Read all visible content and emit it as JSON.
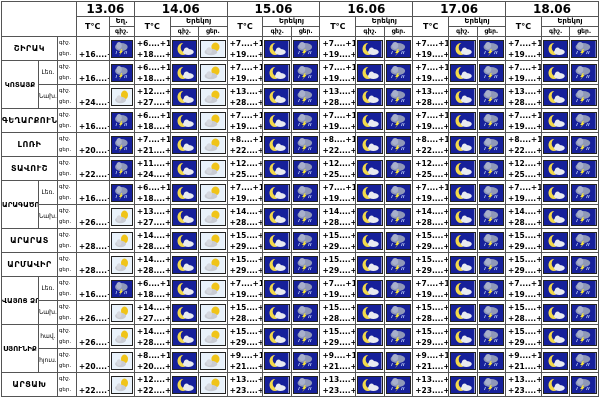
{
  "header": {
    "dates": [
      "13.06",
      "14.06",
      "15.06",
      "16.06",
      "17.06",
      "18.06"
    ],
    "tc_label": "T°C",
    "cond_label": "Եղ.",
    "cond_label_2": "Երեկոյ",
    "night_label": "գիշ.",
    "day_label": "ցեր."
  },
  "regions": [
    {
      "name": "ՇԻՐԱԿ",
      "rows": [
        {
          "labels": [
            "գիշ.",
            "ցեր."
          ],
          "d0": [
            "",
            "+16....+21"
          ],
          "d0_icon": "rain-cloud-icon",
          "temps": [
            [
              "+6....+11",
              "+18....+23"
            ],
            [
              "+7....+12",
              "+19....+24"
            ],
            [
              "+7....+12",
              "+19....+24"
            ],
            [
              "+7....+12",
              "+19....+24"
            ],
            [
              "+7....+12",
              "+19....+24"
            ]
          ],
          "icons": [
            [
              "moon-cloud-icon",
              "sun-cloud-icon"
            ],
            [
              "moon-cloud-icon",
              "rain-cloud-icon"
            ],
            [
              "moon-cloud-icon",
              "rain-cloud-icon"
            ],
            [
              "moon-cloud-icon",
              "rain-cloud-icon"
            ],
            [
              "moon-cloud-icon",
              "rain-cloud-icon"
            ]
          ]
        }
      ]
    },
    {
      "name": "ԿՈՏԱՅՔ",
      "rows": [
        {
          "sub": "Լեռ.",
          "labels": [
            "գիշ.",
            "ցեր."
          ],
          "d0": [
            "",
            "+16....+21"
          ],
          "d0_icon": "rain-cloud-icon",
          "temps": [
            [
              "+6....+11",
              "+18....+23"
            ],
            [
              "+7....+12",
              "+19....+24"
            ],
            [
              "+7....+12",
              "+19....+24"
            ],
            [
              "+7....+12",
              "+19....+24"
            ],
            [
              "+7....+12",
              "+19....+24"
            ]
          ],
          "icons": [
            [
              "moon-cloud-icon",
              "sun-cloud-icon"
            ],
            [
              "moon-cloud-icon",
              "rain-cloud-icon"
            ],
            [
              "moon-cloud-icon",
              "rain-cloud-icon"
            ],
            [
              "moon-cloud-icon",
              "rain-cloud-icon"
            ],
            [
              "moon-cloud-icon",
              "rain-cloud-icon"
            ]
          ]
        },
        {
          "sub": "Նախ.",
          "labels": [
            "գիշ.",
            "ցեր."
          ],
          "d0": [
            "",
            "+24....+27"
          ],
          "d0_icon": "sun-cloud-icon",
          "temps": [
            [
              "+12....+14",
              "+27....+29"
            ],
            [
              "+13....+15",
              "+28....+30"
            ],
            [
              "+13....+15",
              "+28....+30"
            ],
            [
              "+13....+15",
              "+28....+30"
            ],
            [
              "+13....+15",
              "+28....+30"
            ]
          ],
          "icons": [
            [
              "moon-cloud-icon",
              "sun-cloud-icon"
            ],
            [
              "moon-cloud-icon",
              "rain-cloud-icon"
            ],
            [
              "moon-cloud-icon",
              "rain-cloud-icon"
            ],
            [
              "moon-cloud-icon",
              "rain-cloud-icon"
            ],
            [
              "moon-cloud-icon",
              "rain-cloud-icon"
            ]
          ]
        }
      ]
    },
    {
      "name": "ԳԵՂԱՐՔՈՒՆԻՔ",
      "rows": [
        {
          "labels": [
            "գիշ.",
            "ցեր."
          ],
          "d0": [
            "",
            "+16....+21"
          ],
          "d0_icon": "rain-cloud-icon",
          "temps": [
            [
              "+6....+11",
              "+18....+23"
            ],
            [
              "+7....+12",
              "+19....+24"
            ],
            [
              "+7....+12",
              "+19....+24"
            ],
            [
              "+7....+12",
              "+19....+24"
            ],
            [
              "+7....+12",
              "+19....+24"
            ]
          ],
          "icons": [
            [
              "moon-cloud-icon",
              "sun-cloud-icon"
            ],
            [
              "moon-cloud-icon",
              "rain-cloud-icon"
            ],
            [
              "moon-cloud-icon",
              "rain-cloud-icon"
            ],
            [
              "moon-cloud-icon",
              "rain-cloud-icon"
            ],
            [
              "moon-cloud-icon",
              "rain-cloud-icon"
            ]
          ]
        }
      ]
    },
    {
      "name": "ԼՈՌԻ",
      "rows": [
        {
          "labels": [
            "գիշ.",
            "ցեր."
          ],
          "d0": [
            "",
            "+20....+23"
          ],
          "d0_icon": "rain-cloud-icon",
          "temps": [
            [
              "+7....+12",
              "+21....+24"
            ],
            [
              "+8....+13",
              "+22....+25"
            ],
            [
              "+8....+13",
              "+22....+25"
            ],
            [
              "+8....+13",
              "+22....+25"
            ],
            [
              "+8....+13",
              "+22....+25"
            ]
          ],
          "icons": [
            [
              "moon-cloud-icon",
              "sun-cloud-icon"
            ],
            [
              "moon-cloud-icon",
              "rain-cloud-icon"
            ],
            [
              "moon-cloud-icon",
              "rain-cloud-icon"
            ],
            [
              "moon-cloud-icon",
              "rain-cloud-icon"
            ],
            [
              "moon-cloud-icon",
              "rain-cloud-icon"
            ]
          ]
        }
      ]
    },
    {
      "name": "ՏԱՎՈՒՇ",
      "rows": [
        {
          "labels": [
            "գիշ.",
            "ցեր."
          ],
          "d0": [
            "",
            "+22....+27"
          ],
          "d0_icon": "rain-cloud-icon",
          "temps": [
            [
              "+11....+16",
              "+24....+28"
            ],
            [
              "+12....+17",
              "+25....+29"
            ],
            [
              "+12....+17",
              "+25....+29"
            ],
            [
              "+12....+17",
              "+25....+29"
            ],
            [
              "+12....+17",
              "+25....+29"
            ]
          ],
          "icons": [
            [
              "moon-cloud-icon",
              "sun-cloud-icon"
            ],
            [
              "moon-cloud-icon",
              "rain-cloud-icon"
            ],
            [
              "moon-cloud-icon",
              "rain-cloud-icon"
            ],
            [
              "moon-cloud-icon",
              "rain-cloud-icon"
            ],
            [
              "moon-cloud-icon",
              "rain-cloud-icon"
            ]
          ]
        }
      ]
    },
    {
      "name": "ԱՐԱԳԱԾՈՏՆ",
      "rows": [
        {
          "sub": "Լեռ.",
          "labels": [
            "գիշ.",
            "ցեր."
          ],
          "d0": [
            "",
            "+16....+21"
          ],
          "d0_icon": "rain-cloud-icon",
          "temps": [
            [
              "+6....+11",
              "+18....+23"
            ],
            [
              "+7....+12",
              "+19....+24"
            ],
            [
              "+7....+12",
              "+19....+24"
            ],
            [
              "+7....+12",
              "+19....+24"
            ],
            [
              "+7....+12",
              "+19....+24"
            ]
          ],
          "icons": [
            [
              "moon-cloud-icon",
              "sun-cloud-icon"
            ],
            [
              "moon-cloud-icon",
              "rain-cloud-icon"
            ],
            [
              "moon-cloud-icon",
              "rain-cloud-icon"
            ],
            [
              "moon-cloud-icon",
              "rain-cloud-icon"
            ],
            [
              "moon-cloud-icon",
              "rain-cloud-icon"
            ]
          ]
        },
        {
          "sub": "Նախ.",
          "labels": [
            "գիշ.",
            "ցեր."
          ],
          "d0": [
            "",
            "+26....+29"
          ],
          "d0_icon": "sun-cloud-icon",
          "temps": [
            [
              "+13....+15",
              "+27....+30"
            ],
            [
              "+14....+16",
              "+28....+31"
            ],
            [
              "+14....+16",
              "+28....+31"
            ],
            [
              "+14....+16",
              "+28....+31"
            ],
            [
              "+14....+16",
              "+28....+31"
            ]
          ],
          "icons": [
            [
              "moon-cloud-icon",
              "sun-cloud-icon"
            ],
            [
              "moon-cloud-icon",
              "rain-cloud-icon"
            ],
            [
              "moon-cloud-icon",
              "rain-cloud-icon"
            ],
            [
              "moon-cloud-icon",
              "rain-cloud-icon"
            ],
            [
              "moon-cloud-icon",
              "rain-cloud-icon"
            ]
          ]
        }
      ]
    },
    {
      "name": "ԱՐԱՐԱՏ",
      "rows": [
        {
          "labels": [
            "գիշ.",
            "ցեր."
          ],
          "d0": [
            "",
            "+28....+30"
          ],
          "d0_icon": "sun-cloud-icon",
          "temps": [
            [
              "+14....+17",
              "+28....+30"
            ],
            [
              "+15....+18",
              "+29....+31"
            ],
            [
              "+15....+18",
              "+29....+31"
            ],
            [
              "+15....+18",
              "+29....+31"
            ],
            [
              "+15....+18",
              "+29....+31"
            ]
          ],
          "icons": [
            [
              "moon-cloud-icon",
              "sun-cloud-icon"
            ],
            [
              "moon-cloud-icon",
              "rain-cloud-icon"
            ],
            [
              "moon-cloud-icon",
              "rain-cloud-icon"
            ],
            [
              "moon-cloud-icon",
              "rain-cloud-icon"
            ],
            [
              "moon-cloud-icon",
              "rain-cloud-icon"
            ]
          ]
        }
      ]
    },
    {
      "name": "ԱՐՄԱՎԻՐ",
      "rows": [
        {
          "labels": [
            "գիշ.",
            "ցեր."
          ],
          "d0": [
            "",
            "+28....+30"
          ],
          "d0_icon": "sun-cloud-icon",
          "temps": [
            [
              "+14....+17",
              "+28....+30"
            ],
            [
              "+15....+18",
              "+29....+31"
            ],
            [
              "+15....+18",
              "+29....+31"
            ],
            [
              "+15....+18",
              "+29....+31"
            ],
            [
              "+15....+18",
              "+29....+31"
            ]
          ],
          "icons": [
            [
              "moon-cloud-icon",
              "sun-cloud-icon"
            ],
            [
              "moon-cloud-icon",
              "rain-cloud-icon"
            ],
            [
              "moon-cloud-icon",
              "rain-cloud-icon"
            ],
            [
              "moon-cloud-icon",
              "rain-cloud-icon"
            ],
            [
              "moon-cloud-icon",
              "rain-cloud-icon"
            ]
          ]
        }
      ]
    },
    {
      "name": "ՎԱՅՈՑ ՁՈՐ",
      "rows": [
        {
          "sub": "Լեռ.",
          "labels": [
            "գիշ.",
            "ցեր."
          ],
          "d0": [
            "",
            "+16....+21"
          ],
          "d0_icon": "rain-cloud-icon",
          "temps": [
            [
              "+6....+11",
              "+18....+23"
            ],
            [
              "+7....+12",
              "+19....+24"
            ],
            [
              "+7....+12",
              "+19....+24"
            ],
            [
              "+7....+12",
              "+19....+24"
            ],
            [
              "+7....+12",
              "+19....+24"
            ]
          ],
          "icons": [
            [
              "moon-cloud-icon",
              "sun-cloud-icon"
            ],
            [
              "moon-cloud-icon",
              "rain-cloud-icon"
            ],
            [
              "moon-cloud-icon",
              "rain-cloud-icon"
            ],
            [
              "moon-cloud-icon",
              "rain-cloud-icon"
            ],
            [
              "moon-cloud-icon",
              "rain-cloud-icon"
            ]
          ]
        },
        {
          "sub": "Նախ.",
          "labels": [
            "գիշ.",
            "ցեր."
          ],
          "d0": [
            "",
            "+26....+29"
          ],
          "d0_icon": "sun-cloud-icon",
          "temps": [
            [
              "+14....+17",
              "+27....+30"
            ],
            [
              "+15....+18",
              "+28....+31"
            ],
            [
              "+15....+18",
              "+28....+31"
            ],
            [
              "+15....+18",
              "+28....+31"
            ],
            [
              "+15....+18",
              "+28....+31"
            ]
          ],
          "icons": [
            [
              "moon-cloud-icon",
              "sun-cloud-icon"
            ],
            [
              "moon-cloud-icon",
              "rain-cloud-icon"
            ],
            [
              "moon-cloud-icon",
              "rain-cloud-icon"
            ],
            [
              "moon-cloud-icon",
              "rain-cloud-icon"
            ],
            [
              "moon-cloud-icon",
              "rain-cloud-icon"
            ]
          ]
        }
      ]
    },
    {
      "name": "ՍՅՈՒՆԻՔ",
      "rows": [
        {
          "sub": "հավ.",
          "labels": [
            "գիշ.",
            "ցեր."
          ],
          "d0": [
            "",
            "+26....+30"
          ],
          "d0_icon": "sun-cloud-icon",
          "temps": [
            [
              "+14....+19",
              "+28....+32"
            ],
            [
              "+15....+20",
              "+29....+33"
            ],
            [
              "+15....+20",
              "+29....+33"
            ],
            [
              "+15....+20",
              "+29....+33"
            ],
            [
              "+15....+20",
              "+29....+33"
            ]
          ],
          "icons": [
            [
              "moon-cloud-icon",
              "sun-cloud-icon"
            ],
            [
              "moon-cloud-icon",
              "rain-cloud-icon"
            ],
            [
              "moon-cloud-icon",
              "rain-cloud-icon"
            ],
            [
              "moon-cloud-icon",
              "rain-cloud-icon"
            ],
            [
              "moon-cloud-icon",
              "rain-cloud-icon"
            ]
          ]
        },
        {
          "sub": "հյուս.",
          "labels": [
            "գիշ.",
            "ցեր."
          ],
          "d0": [
            "",
            "+20....+23"
          ],
          "d0_icon": "sun-cloud-icon",
          "temps": [
            [
              "+8....+12",
              "+20....+24"
            ],
            [
              "+9....+13",
              "+21....+25"
            ],
            [
              "+9....+13",
              "+21....+25"
            ],
            [
              "+9....+13",
              "+21....+25"
            ],
            [
              "+9....+13",
              "+21....+25"
            ]
          ],
          "icons": [
            [
              "moon-cloud-icon",
              "sun-cloud-icon"
            ],
            [
              "moon-cloud-icon",
              "rain-cloud-icon"
            ],
            [
              "moon-cloud-icon",
              "rain-cloud-icon"
            ],
            [
              "moon-cloud-icon",
              "rain-cloud-icon"
            ],
            [
              "moon-cloud-icon",
              "rain-cloud-icon"
            ]
          ]
        }
      ]
    },
    {
      "name": "ԱՐՑԱԽ",
      "rows": [
        {
          "labels": [
            "գիշ.",
            "ցեր."
          ],
          "d0": [
            "",
            "+22....+25"
          ],
          "d0_icon": "sun-cloud-icon",
          "temps": [
            [
              "+12....+15",
              "+22....+26"
            ],
            [
              "+13....+16",
              "+23....+27"
            ],
            [
              "+13....+16",
              "+23....+27"
            ],
            [
              "+13....+16",
              "+23....+27"
            ],
            [
              "+13....+16",
              "+23....+27"
            ]
          ],
          "icons": [
            [
              "moon-cloud-icon",
              "sun-cloud-icon"
            ],
            [
              "moon-cloud-icon",
              "rain-cloud-icon"
            ],
            [
              "moon-cloud-icon",
              "rain-cloud-icon"
            ],
            [
              "moon-cloud-icon",
              "rain-cloud-icon"
            ],
            [
              "moon-cloud-icon",
              "rain-cloud-icon"
            ]
          ]
        }
      ]
    }
  ],
  "colors": {
    "night_bg": "#16209a",
    "day_bg": "#e9f2fb",
    "moon": "#f2d94b",
    "sun": "#f0c419",
    "cloud": "#e8eaf0",
    "lightning": "#f6e33b"
  }
}
